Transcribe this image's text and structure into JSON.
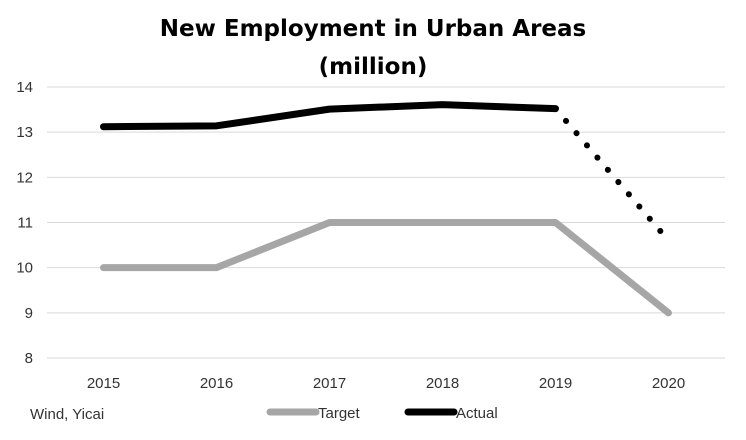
{
  "chart_data": {
    "type": "line",
    "title": "New Employment in Urban Areas",
    "subtitle": "(million)",
    "categories": [
      "2015",
      "2016",
      "2017",
      "2018",
      "2019",
      "2020"
    ],
    "ylim": [
      8,
      14
    ],
    "yticks": [
      "8",
      "9",
      "10",
      "11",
      "12",
      "13",
      "14"
    ],
    "grid": true,
    "legend_position": "bottom",
    "series": [
      {
        "name": "Target",
        "values": [
          10,
          10,
          11,
          11,
          11,
          9
        ],
        "color": "#a6a6a6",
        "style": "solid"
      },
      {
        "name": "Actual",
        "values": [
          13.12,
          13.14,
          13.51,
          13.61,
          13.52,
          10.6
        ],
        "color": "#000000",
        "style": "solid-then-dotted",
        "dotted_from_index": 4
      }
    ],
    "source": "Wind, Yicai"
  }
}
